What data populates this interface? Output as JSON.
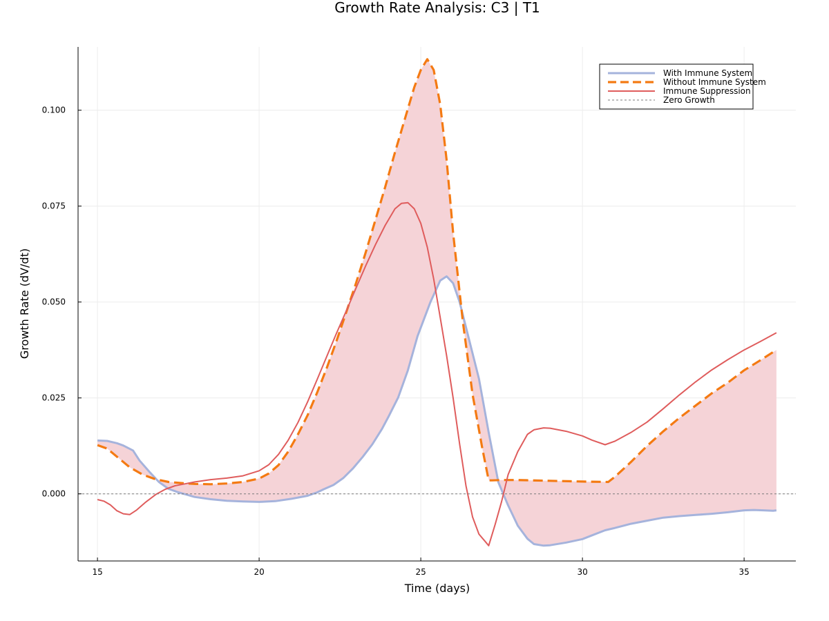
{
  "chart_data": {
    "type": "line",
    "title": "Growth Rate Analysis: C3 | T1",
    "xlabel": "Time (days)",
    "ylabel": "Growth Rate (dV/dt)",
    "xlim": [
      14.4,
      36.6
    ],
    "ylim": [
      -0.0175,
      0.1165
    ],
    "x_ticks": [
      15,
      20,
      25,
      30,
      35
    ],
    "y_ticks": [
      0.0,
      0.025,
      0.05,
      0.075,
      0.1
    ],
    "x_tick_labels": [
      "15",
      "20",
      "25",
      "30",
      "35"
    ],
    "y_tick_labels": [
      "0.000",
      "0.025",
      "0.050",
      "0.075",
      "0.100"
    ],
    "grid": true,
    "legend_position": "top-right",
    "fill_between": [
      "With Immune System",
      "Without Immune System"
    ],
    "fill_color": "#f5d3d7",
    "series": [
      {
        "name": "With Immune System",
        "color": "#a5b3dc",
        "style": "solid",
        "x": [
          15.0,
          15.3,
          15.6,
          15.8,
          16.1,
          16.3,
          16.6,
          16.9,
          17.2,
          17.5,
          17.8,
          18.0,
          18.5,
          19.0,
          19.5,
          20.0,
          20.5,
          21.0,
          21.5,
          21.8,
          22.0,
          22.3,
          22.6,
          22.9,
          23.2,
          23.5,
          23.8,
          24.0,
          24.3,
          24.6,
          24.9,
          25.3,
          25.6,
          25.8,
          26.0,
          26.2,
          26.5,
          26.8,
          27.1,
          27.4,
          27.7,
          28.0,
          28.3,
          28.5,
          28.8,
          29.0,
          29.5,
          30.0,
          30.3,
          30.7,
          31.0,
          31.5,
          32.0,
          32.5,
          33.0,
          33.5,
          34.0,
          34.5,
          35.0,
          35.3,
          35.6,
          35.9,
          36.0
        ],
        "y": [
          0.0139,
          0.0138,
          0.0132,
          0.0126,
          0.0113,
          0.0087,
          0.0058,
          0.0031,
          0.0013,
          0.0004,
          -0.0003,
          -0.0008,
          -0.0014,
          -0.0018,
          -0.002,
          -0.0021,
          -0.0019,
          -0.0013,
          -0.0005,
          0.0004,
          0.0012,
          0.0023,
          0.0041,
          0.0066,
          0.0096,
          0.0129,
          0.0169,
          0.0201,
          0.0251,
          0.0322,
          0.0411,
          0.05,
          0.0556,
          0.0567,
          0.0549,
          0.05,
          0.04,
          0.03,
          0.016,
          0.003,
          -0.003,
          -0.0083,
          -0.0117,
          -0.0131,
          -0.0135,
          -0.0134,
          -0.0127,
          -0.0118,
          -0.0108,
          -0.0095,
          -0.0089,
          -0.0078,
          -0.007,
          -0.0062,
          -0.0058,
          -0.0055,
          -0.0052,
          -0.0048,
          -0.0043,
          -0.0042,
          -0.0043,
          -0.0044,
          -0.0043
        ]
      },
      {
        "name": "Without Immune System",
        "color": "#f47a12",
        "style": "dashed",
        "x": [
          15.0,
          15.3,
          15.6,
          16.0,
          16.4,
          16.8,
          17.2,
          17.6,
          18.0,
          18.5,
          19.0,
          19.5,
          20.0,
          20.3,
          20.6,
          20.9,
          21.2,
          21.5,
          21.8,
          22.1,
          22.4,
          22.7,
          23.0,
          23.3,
          23.6,
          23.9,
          24.2,
          24.5,
          24.8,
          25.0,
          25.2,
          25.4,
          25.6,
          25.8,
          26.0,
          26.3,
          26.6,
          26.9,
          27.1,
          27.2,
          27.5,
          28.0,
          29.0,
          30.0,
          30.8,
          31.0,
          31.5,
          32.0,
          32.5,
          33.0,
          33.5,
          34.0,
          34.5,
          35.0,
          35.5,
          36.0
        ],
        "y": [
          0.0127,
          0.0118,
          0.0097,
          0.0069,
          0.005,
          0.0038,
          0.0031,
          0.0028,
          0.0026,
          0.0025,
          0.0027,
          0.0031,
          0.004,
          0.0053,
          0.0075,
          0.011,
          0.0155,
          0.0205,
          0.0265,
          0.033,
          0.04,
          0.0475,
          0.055,
          0.063,
          0.0715,
          0.08,
          0.089,
          0.0975,
          0.106,
          0.1105,
          0.1133,
          0.1105,
          0.1015,
          0.087,
          0.068,
          0.045,
          0.026,
          0.012,
          0.0035,
          0.0035,
          0.0036,
          0.0036,
          0.0034,
          0.0032,
          0.0031,
          0.0044,
          0.0083,
          0.0125,
          0.0163,
          0.0198,
          0.023,
          0.0262,
          0.029,
          0.0322,
          0.0348,
          0.0375
        ]
      },
      {
        "name": "Immune Suppression",
        "color": "#df5c5c",
        "style": "solid",
        "x": [
          15.0,
          15.2,
          15.4,
          15.6,
          15.8,
          16.0,
          16.2,
          16.5,
          16.8,
          17.1,
          17.4,
          17.7,
          18.0,
          18.5,
          19.0,
          19.5,
          20.0,
          20.3,
          20.6,
          20.9,
          21.2,
          21.5,
          21.8,
          22.1,
          22.4,
          22.7,
          23.0,
          23.3,
          23.6,
          23.9,
          24.2,
          24.4,
          24.6,
          24.8,
          25.0,
          25.2,
          25.4,
          25.6,
          25.8,
          26.0,
          26.2,
          26.4,
          26.6,
          26.8,
          27.0,
          27.1,
          27.3,
          27.5,
          27.7,
          28.0,
          28.3,
          28.5,
          28.8,
          29.0,
          29.5,
          30.0,
          30.3,
          30.7,
          31.0,
          31.5,
          32.0,
          32.5,
          33.0,
          33.5,
          34.0,
          34.5,
          35.0,
          35.5,
          36.0
        ],
        "y": [
          -0.0015,
          -0.0019,
          -0.0029,
          -0.0044,
          -0.0052,
          -0.0054,
          -0.0043,
          -0.0021,
          -0.0002,
          0.0012,
          0.0021,
          0.0026,
          0.0031,
          0.0037,
          0.0041,
          0.0047,
          0.006,
          0.0076,
          0.0103,
          0.014,
          0.0186,
          0.024,
          0.0299,
          0.036,
          0.042,
          0.0478,
          0.0537,
          0.0595,
          0.065,
          0.07,
          0.0743,
          0.0757,
          0.0759,
          0.0743,
          0.0705,
          0.0643,
          0.056,
          0.046,
          0.036,
          0.025,
          0.013,
          0.002,
          -0.006,
          -0.0105,
          -0.0125,
          -0.0135,
          -0.008,
          -0.002,
          0.005,
          0.011,
          0.0155,
          0.0167,
          0.0172,
          0.0171,
          0.0163,
          0.0151,
          0.014,
          0.0128,
          0.0137,
          0.016,
          0.0187,
          0.0222,
          0.0258,
          0.0292,
          0.0323,
          0.035,
          0.0375,
          0.0397,
          0.042
        ]
      },
      {
        "name": "Zero Growth",
        "color": "#7a7a7a",
        "style": "dotted",
        "x": [
          14.4,
          36.6
        ],
        "y": [
          0.0,
          0.0
        ]
      }
    ]
  }
}
